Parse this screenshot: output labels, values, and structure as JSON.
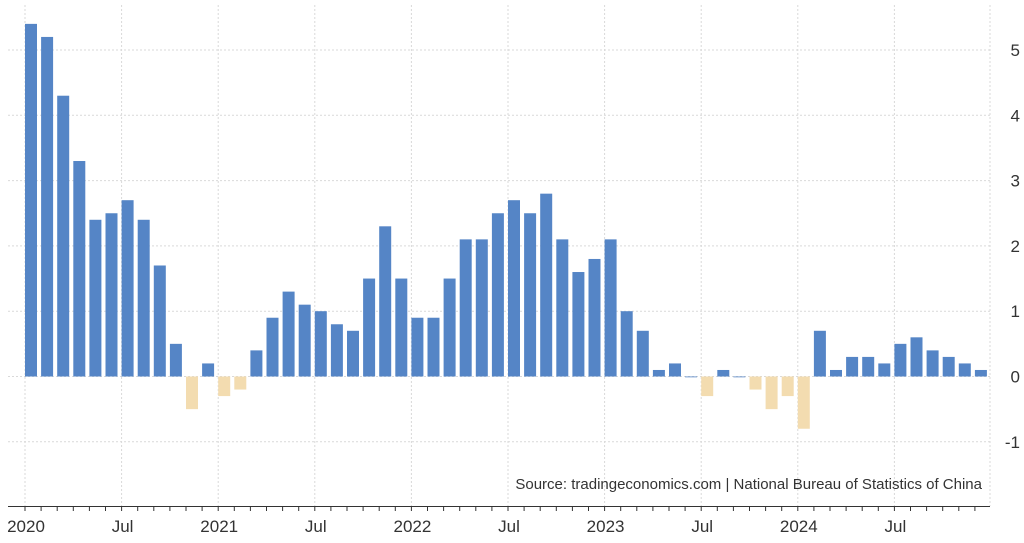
{
  "chart_data": {
    "type": "bar",
    "source": "Source: tradingeconomics.com | National Bureau of Statistics of China",
    "x_tick_labels": [
      {
        "index": 0,
        "label": "2020"
      },
      {
        "index": 6,
        "label": "Jul"
      },
      {
        "index": 12,
        "label": "2021"
      },
      {
        "index": 18,
        "label": "Jul"
      },
      {
        "index": 24,
        "label": "2022"
      },
      {
        "index": 30,
        "label": "Jul"
      },
      {
        "index": 36,
        "label": "2023"
      },
      {
        "index": 42,
        "label": "Jul"
      },
      {
        "index": 48,
        "label": "2024"
      },
      {
        "index": 54,
        "label": "Jul"
      }
    ],
    "y_ticks": [
      -1,
      0,
      1,
      2,
      3,
      4,
      5
    ],
    "ylim": [
      -2,
      5.6
    ],
    "grid": true,
    "positive_color": "#5585c6",
    "negative_color": "#f3dcb0",
    "categories": [
      "2020-01",
      "2020-02",
      "2020-03",
      "2020-04",
      "2020-05",
      "2020-06",
      "2020-07",
      "2020-08",
      "2020-09",
      "2020-10",
      "2020-11",
      "2020-12",
      "2021-01",
      "2021-02",
      "2021-03",
      "2021-04",
      "2021-05",
      "2021-06",
      "2021-07",
      "2021-08",
      "2021-09",
      "2021-10",
      "2021-11",
      "2021-12",
      "2022-01",
      "2022-02",
      "2022-03",
      "2022-04",
      "2022-05",
      "2022-06",
      "2022-07",
      "2022-08",
      "2022-09",
      "2022-10",
      "2022-11",
      "2022-12",
      "2023-01",
      "2023-02",
      "2023-03",
      "2023-04",
      "2023-05",
      "2023-06",
      "2023-07",
      "2023-08",
      "2023-09",
      "2023-10",
      "2023-11",
      "2023-12",
      "2024-01",
      "2024-02",
      "2024-03",
      "2024-04",
      "2024-05",
      "2024-06",
      "2024-07",
      "2024-08",
      "2024-09",
      "2024-10",
      "2024-11",
      "2024-12"
    ],
    "values": [
      5.4,
      5.2,
      4.3,
      3.3,
      2.4,
      2.5,
      2.7,
      2.4,
      1.7,
      0.5,
      -0.5,
      0.2,
      -0.3,
      -0.2,
      0.4,
      0.9,
      1.3,
      1.1,
      1.0,
      0.8,
      0.7,
      1.5,
      2.3,
      1.5,
      0.9,
      0.9,
      1.5,
      2.1,
      2.1,
      2.5,
      2.7,
      2.5,
      2.8,
      2.1,
      1.6,
      1.8,
      2.1,
      1.0,
      0.7,
      0.1,
      0.2,
      0.0,
      -0.3,
      0.1,
      0.0,
      -0.2,
      -0.5,
      -0.3,
      -0.8,
      0.7,
      0.1,
      0.3,
      0.3,
      0.2,
      0.5,
      0.6,
      0.4,
      0.3,
      0.2,
      0.1
    ]
  }
}
